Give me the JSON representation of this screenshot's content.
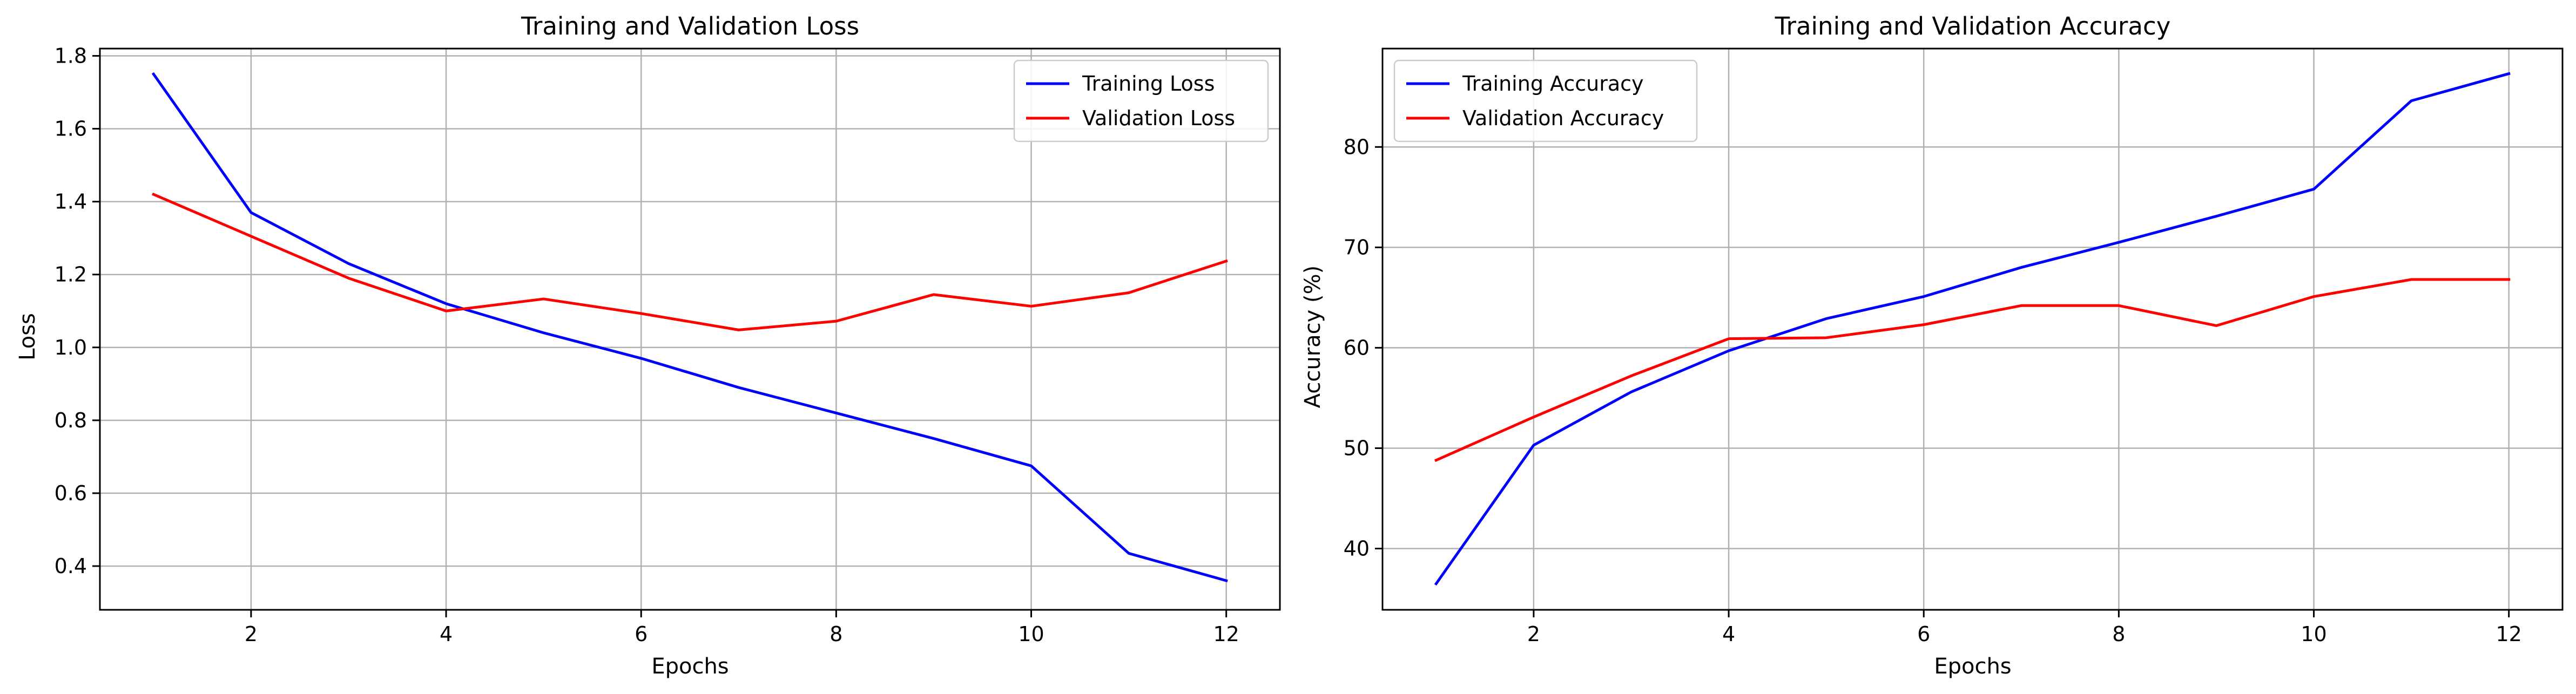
{
  "chart_data": [
    {
      "type": "line",
      "title": "Training and Validation Loss",
      "xlabel": "Epochs",
      "ylabel": "Loss",
      "x": [
        1,
        2,
        3,
        4,
        5,
        6,
        7,
        8,
        9,
        10,
        11,
        12
      ],
      "xlim": [
        0.45,
        12.55
      ],
      "ylim": [
        0.28,
        1.82
      ],
      "xticks": [
        2,
        4,
        6,
        8,
        10,
        12
      ],
      "yticks": [
        0.4,
        0.6,
        0.8,
        1.0,
        1.2,
        1.4,
        1.6,
        1.8
      ],
      "ytick_decimals": 1,
      "grid": true,
      "legend": "top-right",
      "series": [
        {
          "name": "Training Loss",
          "color": "#0000ff",
          "values": [
            1.75,
            1.37,
            1.23,
            1.12,
            1.04,
            0.97,
            0.89,
            0.82,
            0.75,
            0.675,
            0.435,
            0.36
          ]
        },
        {
          "name": "Validation Loss",
          "color": "#ff0000",
          "values": [
            1.42,
            1.305,
            1.19,
            1.1,
            1.133,
            1.093,
            1.048,
            1.072,
            1.145,
            1.113,
            1.15,
            1.237
          ]
        }
      ]
    },
    {
      "type": "line",
      "title": "Training and Validation Accuracy",
      "xlabel": "Epochs",
      "ylabel": "Accuracy (%)",
      "x": [
        1,
        2,
        3,
        4,
        5,
        6,
        7,
        8,
        9,
        10,
        11,
        12
      ],
      "xlim": [
        0.45,
        12.55
      ],
      "ylim": [
        33.9,
        89.8
      ],
      "xticks": [
        2,
        4,
        6,
        8,
        10,
        12
      ],
      "yticks": [
        40,
        50,
        60,
        70,
        80
      ],
      "ytick_decimals": 0,
      "grid": true,
      "legend": "top-left",
      "series": [
        {
          "name": "Training Accuracy",
          "color": "#0000ff",
          "values": [
            36.5,
            50.3,
            55.6,
            59.7,
            62.9,
            65.1,
            68.0,
            70.5,
            73.1,
            75.8,
            84.6,
            87.3
          ]
        },
        {
          "name": "Validation Accuracy",
          "color": "#ff0000",
          "values": [
            48.8,
            53.1,
            57.2,
            60.9,
            61.0,
            62.3,
            64.2,
            64.2,
            62.2,
            65.1,
            66.8,
            66.8
          ]
        }
      ]
    }
  ]
}
